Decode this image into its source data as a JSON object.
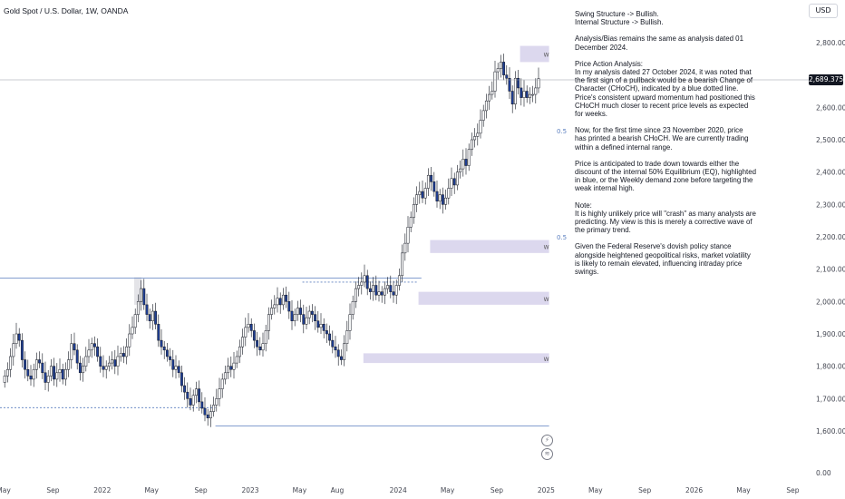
{
  "header": {
    "symbol_title": "Gold Spot / U.S. Dollar, 1W, OANDA",
    "currency_badge": "USD"
  },
  "analysis": {
    "structure": "Swing Structure -> Bullish.\nInternal Structure -> Bullish.",
    "bias": "Analysis/Bias remains the same as analysis dated 01 December 2024.",
    "price_action": "Price Action Analysis:\nIn my analysis dated 27 October 2024, it was noted that the first sign of a pullback would be a bearish Change of Character (CHoCH), indicated by a blue dotted line. Price's consistent upward momentum had positioned this CHoCH much closer to recent price levels as expected for weeks.",
    "now": "Now, for the first time since 23 November 2020, price has printed a bearish CHoCH. We are currently trading within a defined internal range.",
    "anticipation": "Price is anticipated to trade down towards either the discount of the internal 50% Equilibrium (EQ), highlighted in blue, or the Weekly demand zone before targeting the weak internal high.",
    "note": "Note:\nIt is highly unlikely price will \"crash\" as many analysts are predicting.  My view is this is merely a corrective wave of the primary trend.",
    "fed": "Given the Federal Reserve's dovish policy stance alongside heightened geopolitical risks, market volatility is likely to remain elevated, influencing intraday price swings."
  },
  "current_price_label": "2,689.375",
  "colors": {
    "up_candle": "#ffffff",
    "down_candle": "#1f3f94",
    "wick": "#131722",
    "zone": "#dcd8ee",
    "structure_line": "#5b7fbf",
    "text": "#131722",
    "axis_text": "#434651"
  },
  "chart_data": {
    "type": "candlestick",
    "title": "Gold Spot / U.S. Dollar, 1W, OANDA",
    "ylim": [
      0,
      2830
    ],
    "y_ticks": [
      {
        "value": 2800,
        "label": "2,800.000"
      },
      {
        "value": 2600,
        "label": "2,600.000"
      },
      {
        "value": 2500,
        "label": "2,500.000"
      },
      {
        "value": 2400,
        "label": "2,400.000"
      },
      {
        "value": 2300,
        "label": "2,300.000"
      },
      {
        "value": 2200,
        "label": "2,200.000"
      },
      {
        "value": 2100,
        "label": "2,100.000"
      },
      {
        "value": 2000,
        "label": "2,000.000"
      },
      {
        "value": 1900,
        "label": "1,900.000"
      },
      {
        "value": 1800,
        "label": "1,800.000"
      },
      {
        "value": 1700,
        "label": "1,700.000"
      },
      {
        "value": 1600,
        "label": "1,600.000"
      },
      {
        "value": 0,
        "label": "0.00"
      }
    ],
    "x_ticks": [
      {
        "label": "May",
        "week": 0
      },
      {
        "label": "Sep",
        "week": 17
      },
      {
        "label": "2022",
        "week": 34
      },
      {
        "label": "May",
        "week": 51
      },
      {
        "label": "Sep",
        "week": 68
      },
      {
        "label": "2023",
        "week": 85
      },
      {
        "label": "May",
        "week": 102
      },
      {
        "label": "Aug",
        "week": 115
      },
      {
        "label": "2024",
        "week": 136
      },
      {
        "label": "May",
        "week": 153
      },
      {
        "label": "Sep",
        "week": 170
      },
      {
        "label": "2025",
        "week": 187
      },
      {
        "label": "May",
        "week": 204
      },
      {
        "label": "Sep",
        "week": 221
      },
      {
        "label": "2026",
        "week": 238
      },
      {
        "label": "May",
        "week": 255
      },
      {
        "label": "Sep",
        "week": 272
      }
    ],
    "current_price": 2689.375,
    "closes": [
      1770,
      1790,
      1830,
      1870,
      1900,
      1880,
      1820,
      1790,
      1770,
      1760,
      1790,
      1820,
      1810,
      1780,
      1750,
      1770,
      1800,
      1760,
      1780,
      1790,
      1760,
      1790,
      1820,
      1870,
      1850,
      1810,
      1780,
      1800,
      1830,
      1850,
      1870,
      1860,
      1830,
      1800,
      1790,
      1800,
      1810,
      1820,
      1800,
      1830,
      1840,
      1830,
      1860,
      1900,
      1920,
      1960,
      2000,
      2040,
      1990,
      1960,
      1940,
      1970,
      1930,
      1880,
      1860,
      1850,
      1830,
      1820,
      1790,
      1800,
      1780,
      1740,
      1720,
      1700,
      1680,
      1710,
      1730,
      1690,
      1670,
      1650,
      1640,
      1660,
      1680,
      1700,
      1730,
      1760,
      1780,
      1800,
      1790,
      1810,
      1830,
      1860,
      1890,
      1920,
      1930,
      1910,
      1880,
      1860,
      1850,
      1870,
      1910,
      1960,
      1980,
      1990,
      2010,
      1990,
      2020,
      2000,
      1970,
      1940,
      1960,
      1980,
      1960,
      1930,
      1950,
      1970,
      1960,
      1940,
      1920,
      1930,
      1910,
      1900,
      1880,
      1860,
      1850,
      1830,
      1820,
      1870,
      1910,
      1960,
      2000,
      2040,
      2050,
      2060,
      2080,
      2040,
      2030,
      2050,
      2020,
      2030,
      2020,
      2040,
      2050,
      2030,
      2020,
      2050,
      2080,
      2150,
      2180,
      2230,
      2260,
      2300,
      2330,
      2340,
      2320,
      2350,
      2390,
      2370,
      2340,
      2310,
      2330,
      2300,
      2320,
      2350,
      2380,
      2360,
      2400,
      2410,
      2440,
      2420,
      2470,
      2500,
      2510,
      2520,
      2560,
      2590,
      2620,
      2640,
      2650,
      2710,
      2720,
      2740,
      2700,
      2690,
      2650,
      2610,
      2690,
      2660,
      2630,
      2650,
      2630,
      2640,
      2640,
      2660,
      2689
    ]
  }
}
